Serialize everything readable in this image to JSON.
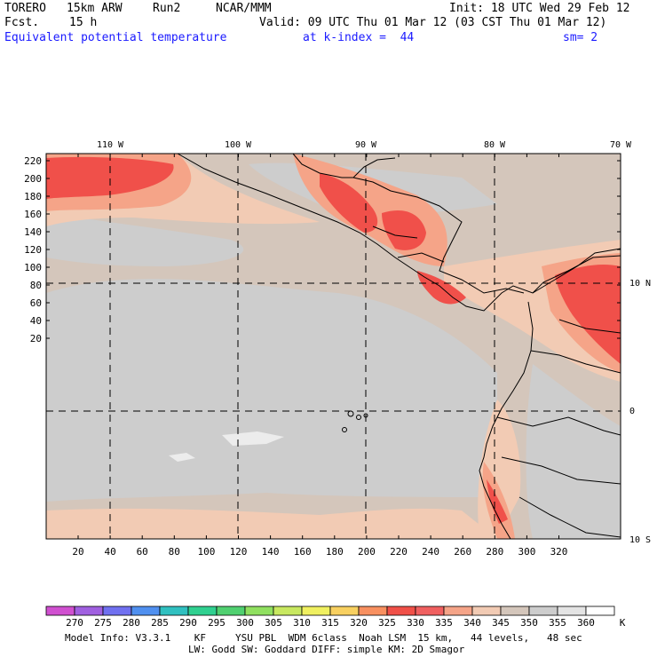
{
  "header": {
    "model": "TORERO",
    "resolution": "15km ARW",
    "run": "Run2",
    "org": "NCAR/MMM",
    "init": "Init: 18 UTC Wed 29 Feb 12",
    "fcst_label": "Fcst.",
    "fcst_value": "15 h",
    "valid": "Valid: 09 UTC Thu 01 Mar 12 (03 CST Thu 01 Mar 12)",
    "field": "Equivalent potential temperature",
    "level": "at k-index =  44",
    "smooth": "sm= 2"
  },
  "map": {
    "lon_labels": [
      "110 W",
      "100 W",
      "90 W",
      "80 W",
      "70 W"
    ],
    "lat_labels": [
      "10 N",
      "0",
      "10 S"
    ],
    "y_ticks": [
      "220",
      "200",
      "180",
      "160",
      "140",
      "120",
      "100",
      "80",
      "60",
      "40",
      "20"
    ],
    "x_ticks": [
      "20",
      "40",
      "60",
      "80",
      "100",
      "120",
      "140",
      "160",
      "180",
      "200",
      "220",
      "240",
      "260",
      "280",
      "300",
      "320"
    ],
    "colors": {
      "ocean_base": "#d4c6bb",
      "cool": "#cdcdcd",
      "coolest": "#ececec",
      "warm": "#f2cbb4",
      "warmer": "#f5a488",
      "hot": "#f0504a",
      "coast": "#000000"
    }
  },
  "colorbar": {
    "unit": "K",
    "levels": [
      "270",
      "275",
      "280",
      "285",
      "290",
      "295",
      "300",
      "305",
      "310",
      "315",
      "320",
      "325",
      "330",
      "335",
      "340",
      "345",
      "350",
      "355",
      "360"
    ],
    "colors": [
      "#d050d0",
      "#a060e0",
      "#7070f0",
      "#5090f0",
      "#30c0c0",
      "#30d090",
      "#50d070",
      "#90e060",
      "#c8e860",
      "#f0f060",
      "#f8d060",
      "#f89060",
      "#f05048",
      "#f06060",
      "#f5a488",
      "#f2cbb4",
      "#d4c6bb",
      "#cdcdcd",
      "#e4e4e4",
      "#ffffff"
    ]
  },
  "footer": {
    "line1": "Model Info: V3.3.1    KF     YSU PBL  WDM 6class  Noah LSM  15 km,   44 levels,   48 sec",
    "line2": "LW: Godd SW: Goddard DIFF: simple KM: 2D Smagor"
  }
}
